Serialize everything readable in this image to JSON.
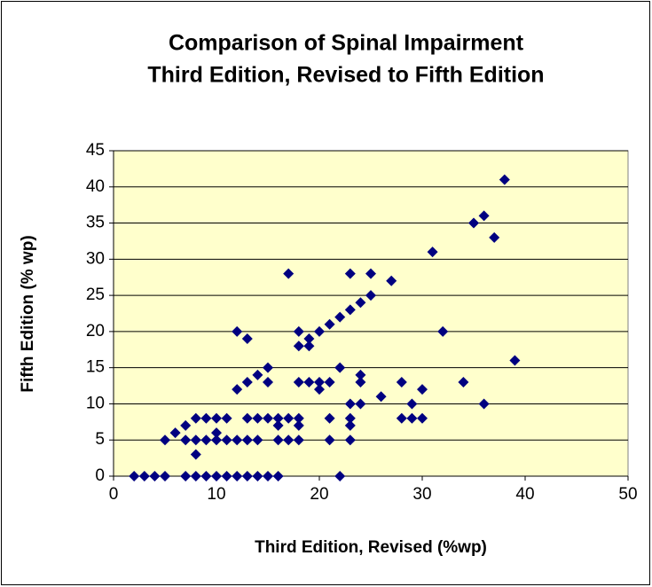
{
  "chart_data": {
    "type": "scatter",
    "title": [
      "Comparison of Spinal Impairment",
      "Third Edition, Revised to Fifth Edition"
    ],
    "x_label": "Third Edition, Revised (%wp)",
    "y_label": "Fifth Edition (% wp)",
    "color": "#000080",
    "plot_background": "#ffffcc",
    "grid": true,
    "xlim": [
      0,
      50
    ],
    "xticks": [
      0,
      10,
      20,
      30,
      40,
      50
    ],
    "ylim": [
      0,
      45
    ],
    "yticks": [
      0,
      5,
      10,
      15,
      20,
      25,
      30,
      35,
      40,
      45
    ],
    "x": [
      2,
      3,
      4,
      5,
      7,
      8,
      9,
      10,
      11,
      12,
      13,
      14,
      15,
      16,
      22,
      8,
      5,
      7,
      8,
      9,
      10,
      11,
      12,
      13,
      14,
      16,
      17,
      18,
      21,
      23,
      6,
      10,
      7,
      16,
      18,
      23,
      8,
      9,
      10,
      11,
      13,
      14,
      15,
      16,
      17,
      18,
      21,
      23,
      28,
      29,
      30,
      23,
      24,
      29,
      36,
      26,
      12,
      20,
      30,
      13,
      15,
      18,
      19,
      20,
      21,
      24,
      28,
      34,
      14,
      24,
      15,
      22,
      39,
      18,
      19,
      13,
      19,
      12,
      18,
      20,
      32,
      21,
      22,
      23,
      24,
      25,
      27,
      17,
      23,
      25,
      31,
      37,
      35,
      36,
      38
    ],
    "y": [
      0,
      0,
      0,
      0,
      0,
      0,
      0,
      0,
      0,
      0,
      0,
      0,
      0,
      0,
      0,
      3,
      5,
      5,
      5,
      5,
      5,
      5,
      5,
      5,
      5,
      5,
      5,
      5,
      5,
      5,
      6,
      6,
      7,
      7,
      7,
      7,
      8,
      8,
      8,
      8,
      8,
      8,
      8,
      8,
      8,
      8,
      8,
      8,
      8,
      8,
      8,
      10,
      10,
      10,
      10,
      11,
      12,
      12,
      12,
      13,
      13,
      13,
      13,
      13,
      13,
      13,
      13,
      13,
      14,
      14,
      15,
      15,
      16,
      18,
      18,
      19,
      19,
      20,
      20,
      20,
      20,
      21,
      22,
      23,
      24,
      25,
      27,
      28,
      28,
      28,
      31,
      33,
      35,
      36,
      41
    ]
  }
}
